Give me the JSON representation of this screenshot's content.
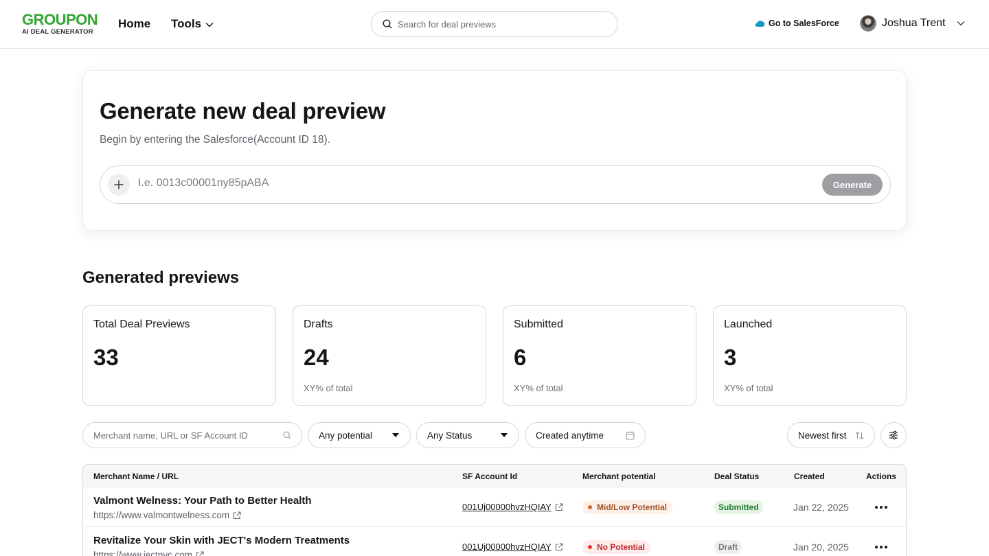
{
  "header": {
    "logo_main": "GROUPON",
    "logo_sub": "AI DEAL GENERATOR",
    "nav": {
      "home": "Home",
      "tools": "Tools"
    },
    "search_placeholder": "Search for deal previews",
    "salesforce_link": "Go to SalesForce",
    "user_name": "Joshua Trent"
  },
  "generate": {
    "title": "Generate new deal preview",
    "subtitle": "Begin by entering the Salesforce(Account ID 18).",
    "input_placeholder": "I.e. 0013c00001ny85pABA",
    "button": "Generate"
  },
  "previews": {
    "title": "Generated previews",
    "stats": [
      {
        "label": "Total Deal Previews",
        "value": "33",
        "note": ""
      },
      {
        "label": "Drafts",
        "value": "24",
        "note": "XY% of total"
      },
      {
        "label": "Submitted",
        "value": "6",
        "note": "XY% of total"
      },
      {
        "label": "Launched",
        "value": "3",
        "note": "XY% of total"
      }
    ]
  },
  "filters": {
    "search_placeholder": "Merchant name, URL or SF Account ID",
    "potential": "Any potential",
    "status": "Any Status",
    "created": "Created anytime",
    "sort": "Newest first"
  },
  "table": {
    "headers": {
      "merchant": "Merchant Name / URL",
      "sf_id": "SF Account Id",
      "potential": "Merchant potential",
      "status": "Deal Status",
      "created": "Created",
      "actions": "Actions"
    },
    "rows": [
      {
        "name": "Valmont Welness: Your Path to Better Health",
        "url": "https://www.valmontwelness.com",
        "sf_id": "001Uj00000hvzHQIAY",
        "potential": "Mid/Low Potential",
        "status": "Submitted",
        "created": "Jan 22, 2025"
      },
      {
        "name": "Revitalize Your Skin with JECT's Modern Treatments",
        "url": "https://www.jectnyc.com",
        "sf_id": "001Uj00000hvzHQIAY",
        "potential": "No Potential",
        "status": "Draft",
        "created": "Jan 20, 2025"
      }
    ]
  },
  "colors": {
    "brand_green": "#33a532",
    "salesforce_blue": "#1798c1",
    "submitted_green": "#1f7a2e",
    "mid_potential_orange": "#d9692a",
    "no_potential_red": "#e03a3e"
  }
}
